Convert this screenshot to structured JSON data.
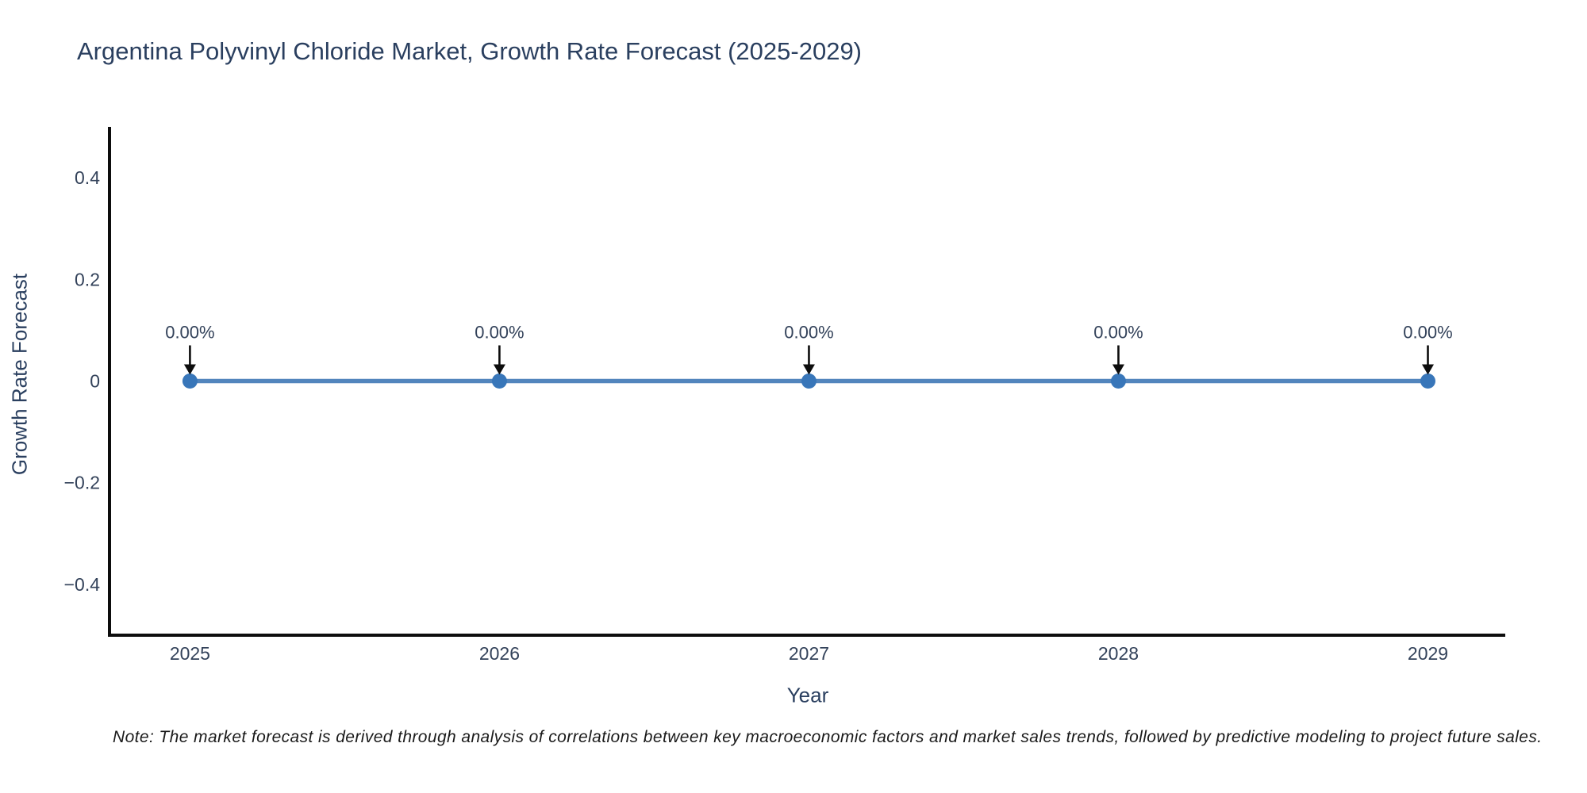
{
  "note": "Note: The market forecast is derived through analysis of correlations between key macroeconomic factors and market sales trends, followed by predictive modeling to project future sales.",
  "chart_data": {
    "type": "line",
    "title": "Argentina Polyvinyl Chloride Market, Growth Rate Forecast (2025-2029)",
    "xlabel": "Year",
    "ylabel": "Growth Rate Forecast",
    "x": [
      2025,
      2026,
      2027,
      2028,
      2029
    ],
    "values": [
      0,
      0,
      0,
      0,
      0
    ],
    "point_labels": [
      "0.00%",
      "0.00%",
      "0.00%",
      "0.00%",
      "0.00%"
    ],
    "xlim": [
      2024.74,
      2029.25
    ],
    "ylim": [
      -0.5,
      0.5
    ],
    "yticks": [
      {
        "value": 0.4,
        "label": "0.4"
      },
      {
        "value": 0.2,
        "label": "0.2"
      },
      {
        "value": 0,
        "label": "0"
      },
      {
        "value": -0.2,
        "label": "−0.2"
      },
      {
        "value": -0.4,
        "label": "−0.4"
      }
    ],
    "xticks": [
      {
        "value": 2025,
        "label": "2025"
      },
      {
        "value": 2026,
        "label": "2026"
      },
      {
        "value": 2027,
        "label": "2027"
      },
      {
        "value": 2028,
        "label": "2028"
      },
      {
        "value": 2029,
        "label": "2029"
      }
    ],
    "grid": false,
    "legend": "none",
    "annotation_arrows": true
  },
  "colors": {
    "background": "#ffffff",
    "title_text": "#2a3f5f",
    "axis_title_text": "#2a3f5f",
    "tick_text": "#33425a",
    "annotation_text": "#33425a",
    "axis_line": "#0d0d0d",
    "line": "#5285bd",
    "marker": "#3876b9",
    "arrow": "#0d0d0d",
    "note_text": "#1a1a1a"
  }
}
